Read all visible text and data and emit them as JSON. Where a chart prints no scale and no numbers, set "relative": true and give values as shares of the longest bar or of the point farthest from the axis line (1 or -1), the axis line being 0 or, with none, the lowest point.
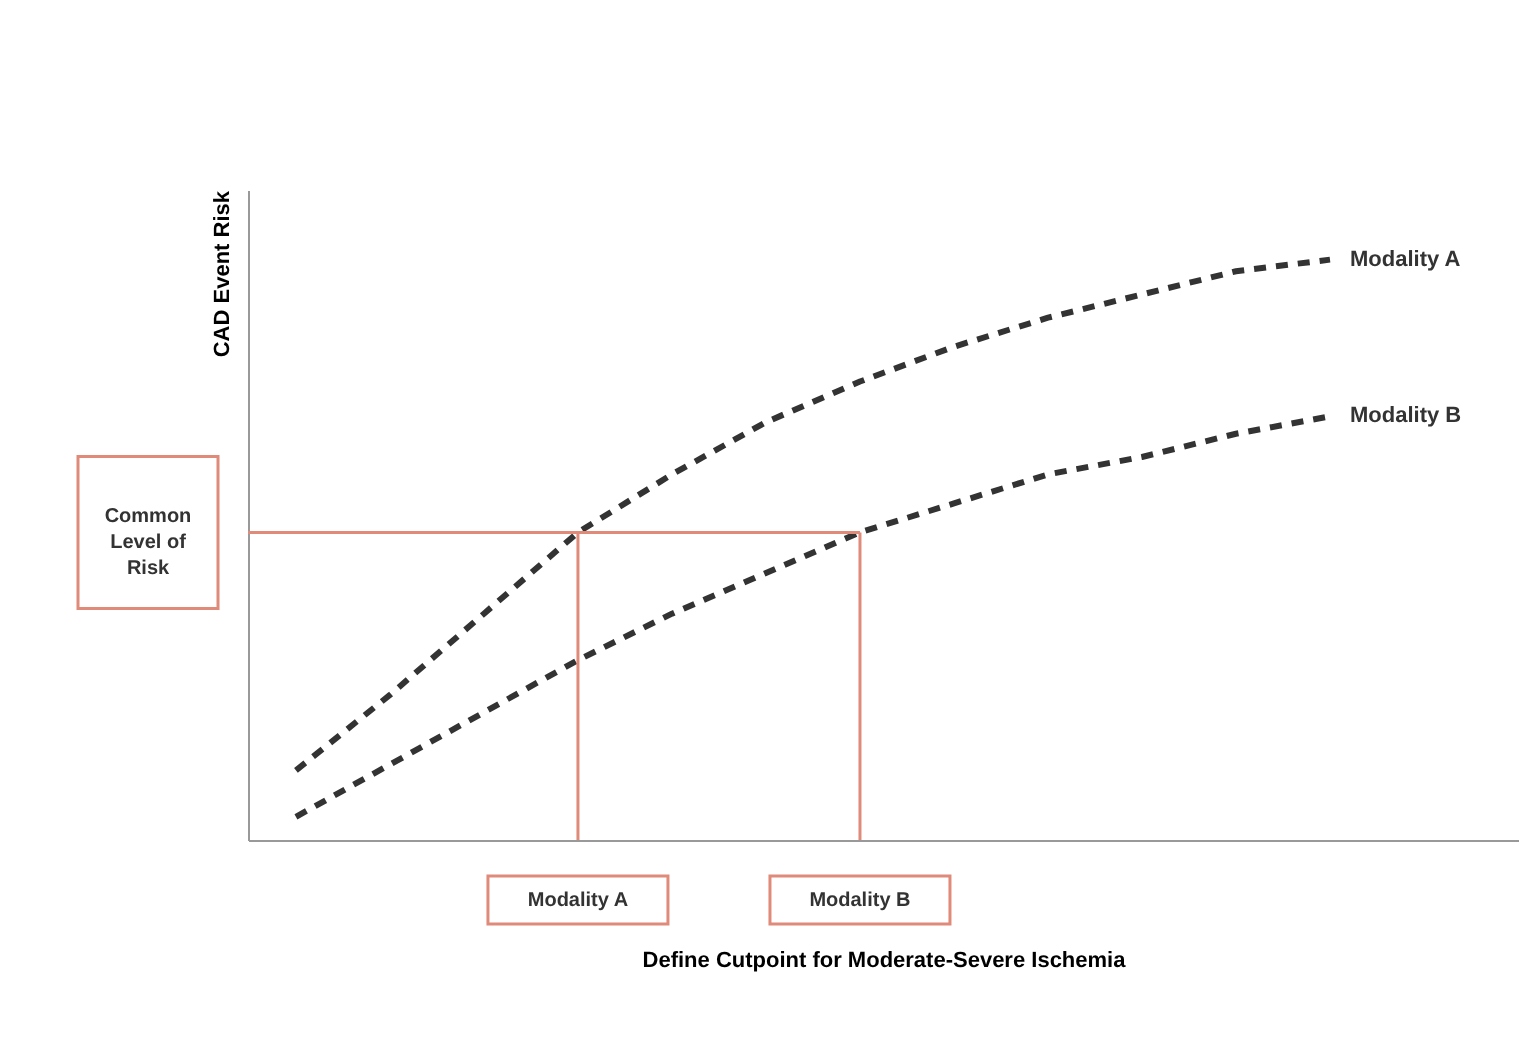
{
  "chart_data": {
    "type": "line",
    "relative": true,
    "xlabel": "Define Cutpoint for Moderate-Severe Ischemia",
    "ylabel": "CAD Event Risk",
    "categories": [
      null,
      null,
      null,
      null,
      null,
      null,
      null,
      null,
      null,
      null,
      null,
      null
    ],
    "series": [
      {
        "name": "Modality A",
        "color": "#333333",
        "values": [
          0.12,
          0.25,
          0.39,
          0.53,
          0.63,
          0.72,
          0.79,
          0.85,
          0.9,
          0.94,
          0.98,
          1.0
        ]
      },
      {
        "name": "Modality B",
        "color": "#333333",
        "values": [
          0.04,
          0.13,
          0.22,
          0.31,
          0.39,
          0.46,
          0.53,
          0.58,
          0.63,
          0.66,
          0.7,
          0.73
        ]
      }
    ],
    "ref_lines": [
      {
        "axis": "y",
        "value": 0.53,
        "label": "Common Level of Risk",
        "color": "#e08a7a"
      }
    ],
    "annotations": [
      "Modality A",
      "Modality B"
    ],
    "line_style": "dashed",
    "marker": "none",
    "grid": false,
    "legend": false
  }
}
